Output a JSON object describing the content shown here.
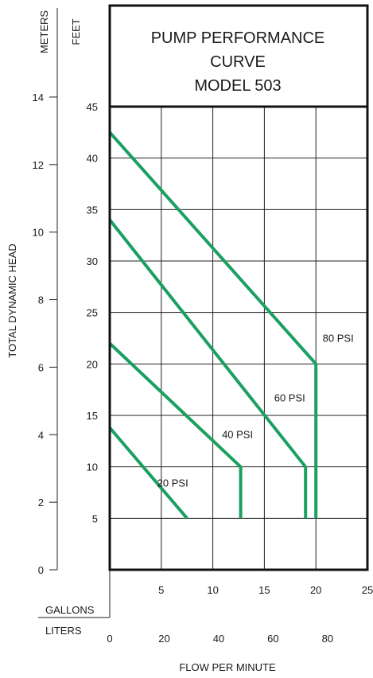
{
  "chart_data": {
    "type": "line",
    "title_lines": [
      "PUMP PERFORMANCE",
      "CURVE",
      "MODEL 503"
    ],
    "left_axis_unit": "FEET",
    "outer_axis_unit": "METERS",
    "ylabel": "TOTAL DYNAMIC HEAD",
    "x_unit_primary": "GALLONS",
    "x_unit_secondary": "LITERS",
    "xlabel": "FLOW PER MINUTE",
    "ylim_feet": [
      0,
      45
    ],
    "xlim_gallons": [
      0,
      25
    ],
    "feet_ticks": [
      5,
      10,
      15,
      20,
      25,
      30,
      35,
      40,
      45
    ],
    "meter_ticks": [
      0,
      2,
      4,
      6,
      8,
      10,
      12,
      14
    ],
    "gallon_ticks": [
      5,
      10,
      15,
      20,
      25
    ],
    "liter_ticks": [
      0,
      20,
      40,
      60,
      80
    ],
    "grid": true,
    "color": "#1aa060",
    "series": [
      {
        "name": "20 PSI",
        "points": [
          [
            0,
            13.8
          ],
          [
            7.5,
            5
          ]
        ]
      },
      {
        "name": "40 PSI",
        "points": [
          [
            0,
            22
          ],
          [
            12.7,
            10
          ],
          [
            12.7,
            5
          ]
        ]
      },
      {
        "name": "60 PSI",
        "points": [
          [
            0,
            34
          ],
          [
            19,
            10
          ],
          [
            19,
            5
          ]
        ]
      },
      {
        "name": "80 PSI",
        "points": [
          [
            0,
            42.5
          ],
          [
            20,
            20
          ],
          [
            20,
            5
          ]
        ]
      }
    ]
  }
}
